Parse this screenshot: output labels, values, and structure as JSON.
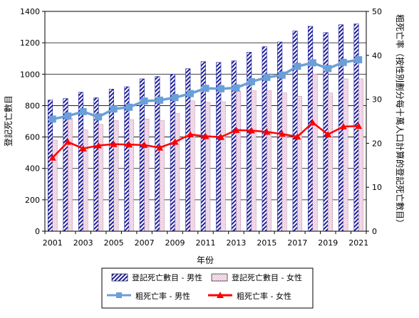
{
  "chart_data": {
    "type": "bar",
    "title": "",
    "xlabel": "年份",
    "ylabel_left": "登記死亡數目",
    "ylabel_right": "粗死亡率（按性別劃分每十萬人口計算的登記死亡數目）",
    "ylim_left": [
      0,
      1400
    ],
    "ylim_right": [
      0,
      50
    ],
    "left_ticks": [
      "0",
      "200",
      "400",
      "600",
      "800",
      "1000",
      "1200",
      "1400"
    ],
    "right_ticks": [
      "0",
      "10",
      "20",
      "30",
      "40",
      "50"
    ],
    "x": [
      2001,
      2002,
      2003,
      2004,
      2005,
      2006,
      2007,
      2008,
      2009,
      2010,
      2011,
      2012,
      2013,
      2014,
      2015,
      2016,
      2017,
      2018,
      2019,
      2020,
      2021
    ],
    "x_tick_labels": [
      "2001",
      "2003",
      "2005",
      "2007",
      "2009",
      "2011",
      "2013",
      "2015",
      "2017",
      "2019",
      "2021"
    ],
    "series": [
      {
        "name": "登記死亡數目 - 男性",
        "kind": "bar",
        "axis": "left",
        "color": "#1f1f9c",
        "values": [
          835,
          845,
          885,
          850,
          905,
          920,
          970,
          985,
          1000,
          1035,
          1080,
          1075,
          1085,
          1140,
          1175,
          1205,
          1275,
          1305,
          1265,
          1315,
          1320
        ]
      },
      {
        "name": "登記死亡數目 - 女性",
        "kind": "bar",
        "axis": "left",
        "color": "#d9a3c3",
        "values": [
          580,
          720,
          645,
          680,
          705,
          710,
          715,
          705,
          750,
          830,
          820,
          825,
          890,
          895,
          895,
          880,
          860,
          1000,
          880,
          970,
          970
        ]
      },
      {
        "name": "粗死亡率 - 男性",
        "kind": "line",
        "axis": "right",
        "color": "#6a9fd8",
        "values": [
          25.5,
          26.2,
          27.2,
          26.0,
          27.8,
          28.2,
          29.6,
          29.8,
          30.4,
          31.3,
          32.5,
          32.4,
          32.6,
          34.0,
          35.0,
          35.5,
          37.5,
          38.3,
          37.0,
          38.4,
          39.0
        ]
      },
      {
        "name": "粗死亡率 - 女性",
        "kind": "line",
        "axis": "right",
        "color": "#ff0000",
        "values": [
          16.7,
          20.3,
          18.8,
          19.5,
          19.8,
          19.7,
          19.6,
          19.0,
          20.3,
          22.0,
          21.6,
          21.4,
          23.0,
          22.9,
          22.6,
          22.1,
          21.5,
          24.7,
          22.0,
          23.8,
          23.9
        ]
      }
    ],
    "grid": "horizontal",
    "legend_position": "bottom"
  }
}
